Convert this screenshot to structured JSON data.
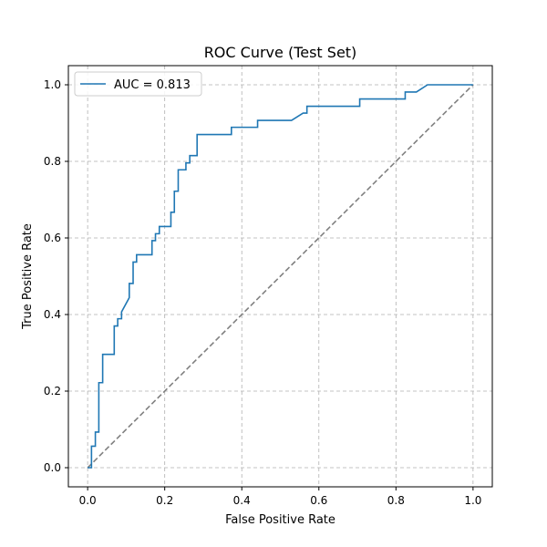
{
  "chart_data": {
    "type": "line",
    "title": "ROC Curve (Test Set)",
    "xlabel": "False Positive Rate",
    "ylabel": "True Positive Rate",
    "xlim": [
      -0.05,
      1.05
    ],
    "ylim": [
      -0.05,
      1.05
    ],
    "xticks": [
      "0.0",
      "0.2",
      "0.4",
      "0.6",
      "0.8",
      "1.0"
    ],
    "yticks": [
      "0.0",
      "0.2",
      "0.4",
      "0.6",
      "0.8",
      "1.0"
    ],
    "grid": true,
    "legend_position": "top-left",
    "series": [
      {
        "name": "AUC = 0.813",
        "color": "#1f77b4",
        "style": "solid",
        "x": [
          0.0,
          0.01,
          0.01,
          0.02,
          0.02,
          0.029,
          0.029,
          0.039,
          0.039,
          0.069,
          0.069,
          0.078,
          0.078,
          0.088,
          0.088,
          0.108,
          0.108,
          0.118,
          0.118,
          0.127,
          0.127,
          0.167,
          0.167,
          0.176,
          0.176,
          0.186,
          0.186,
          0.216,
          0.216,
          0.225,
          0.225,
          0.235,
          0.235,
          0.255,
          0.255,
          0.265,
          0.265,
          0.284,
          0.284,
          0.373,
          0.373,
          0.431,
          0.431,
          0.441,
          0.441,
          0.529,
          0.559,
          0.569,
          0.569,
          0.706,
          0.706,
          0.824,
          0.824,
          0.853,
          0.853,
          0.882,
          1.0
        ],
        "y": [
          0.0,
          0.0,
          0.056,
          0.056,
          0.093,
          0.093,
          0.222,
          0.222,
          0.296,
          0.296,
          0.37,
          0.37,
          0.389,
          0.389,
          0.407,
          0.444,
          0.481,
          0.481,
          0.537,
          0.537,
          0.556,
          0.556,
          0.593,
          0.593,
          0.611,
          0.611,
          0.63,
          0.63,
          0.667,
          0.667,
          0.722,
          0.722,
          0.778,
          0.778,
          0.796,
          0.796,
          0.815,
          0.815,
          0.87,
          0.87,
          0.889,
          0.889,
          0.889,
          0.889,
          0.907,
          0.907,
          0.926,
          0.926,
          0.944,
          0.944,
          0.963,
          0.963,
          0.981,
          0.981,
          0.981,
          1.0,
          1.0
        ]
      },
      {
        "name": "",
        "color": "#808080",
        "style": "dashed",
        "x": [
          0,
          1
        ],
        "y": [
          0,
          1
        ]
      }
    ]
  }
}
